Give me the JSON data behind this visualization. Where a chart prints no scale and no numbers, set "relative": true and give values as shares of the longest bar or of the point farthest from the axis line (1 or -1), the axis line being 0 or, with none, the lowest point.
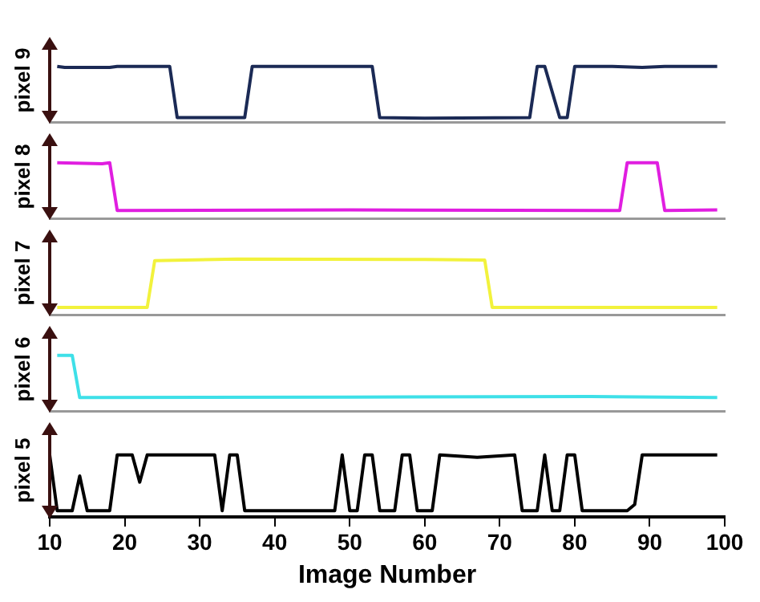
{
  "chart_data": [
    {
      "type": "line",
      "ylabel": "pixel 9",
      "relative": true,
      "marker": "none",
      "grid": false,
      "tick_labels": false,
      "xlim": [
        10,
        100
      ],
      "x": [
        11,
        12,
        18,
        19,
        26,
        27,
        36,
        37,
        44,
        53,
        54,
        60,
        74,
        75,
        76,
        78,
        79,
        80,
        85,
        89,
        92,
        99
      ],
      "series": [
        {
          "color": "#1b2a55",
          "values": [
            1,
            0.98,
            0.98,
            1,
            1,
            0.08,
            0.08,
            1,
            1,
            1,
            0.08,
            0.07,
            0.08,
            1,
            1,
            0.08,
            0.08,
            1,
            1,
            0.98,
            1,
            1
          ]
        }
      ]
    },
    {
      "type": "line",
      "ylabel": "pixel 8",
      "relative": true,
      "marker": "none",
      "grid": false,
      "tick_labels": false,
      "xlim": [
        10,
        100
      ],
      "x": [
        11,
        17,
        18,
        19,
        50,
        86,
        87,
        91,
        92,
        99
      ],
      "series": [
        {
          "color": "#e01ee0",
          "values": [
            1,
            0.98,
            1,
            0.14,
            0.15,
            0.14,
            1,
            1,
            0.14,
            0.15
          ]
        }
      ]
    },
    {
      "type": "line",
      "ylabel": "pixel 7",
      "relative": true,
      "marker": "none",
      "grid": false,
      "tick_labels": false,
      "xlim": [
        10,
        100
      ],
      "x": [
        11,
        23,
        24,
        35,
        60,
        68,
        69,
        99
      ],
      "series": [
        {
          "color": "#f2f23c",
          "values": [
            0.13,
            0.13,
            0.97,
            1,
            0.99,
            0.98,
            0.13,
            0.13
          ]
        }
      ]
    },
    {
      "type": "line",
      "ylabel": "pixel 6",
      "relative": true,
      "marker": "none",
      "grid": false,
      "tick_labels": false,
      "xlim": [
        10,
        100
      ],
      "x": [
        11,
        13,
        14,
        50,
        82,
        99
      ],
      "series": [
        {
          "color": "#3ee0e8",
          "values": [
            1,
            1,
            0.24,
            0.25,
            0.26,
            0.24
          ]
        }
      ]
    },
    {
      "type": "line",
      "ylabel": "pixel 5",
      "xlabel": "Image Number",
      "relative": true,
      "marker": "none",
      "grid": false,
      "tick_labels": "x",
      "xlim": [
        10,
        100
      ],
      "xticks": [
        10,
        20,
        30,
        40,
        50,
        60,
        70,
        80,
        90,
        100
      ],
      "x": [
        10,
        11,
        13,
        14,
        15,
        18,
        19,
        21,
        22,
        23,
        32,
        33,
        34,
        35,
        36,
        48,
        49,
        50,
        51,
        52,
        53,
        54,
        56,
        57,
        58,
        59,
        61,
        62,
        67,
        72,
        73,
        75,
        76,
        77,
        78,
        79,
        80,
        81,
        87,
        88,
        89,
        99
      ],
      "series": [
        {
          "color": "#000000",
          "values": [
            1,
            0.1,
            0.1,
            0.66,
            0.1,
            0.1,
            1,
            1,
            0.56,
            1,
            1,
            0.1,
            1,
            1,
            0.1,
            0.1,
            1,
            0.1,
            0.1,
            1,
            1,
            0.1,
            0.1,
            1,
            1,
            0.1,
            0.1,
            1,
            0.96,
            1,
            0.1,
            0.1,
            1,
            0.1,
            0.1,
            1,
            1,
            0.1,
            0.1,
            0.2,
            1,
            1
          ]
        }
      ]
    }
  ]
}
